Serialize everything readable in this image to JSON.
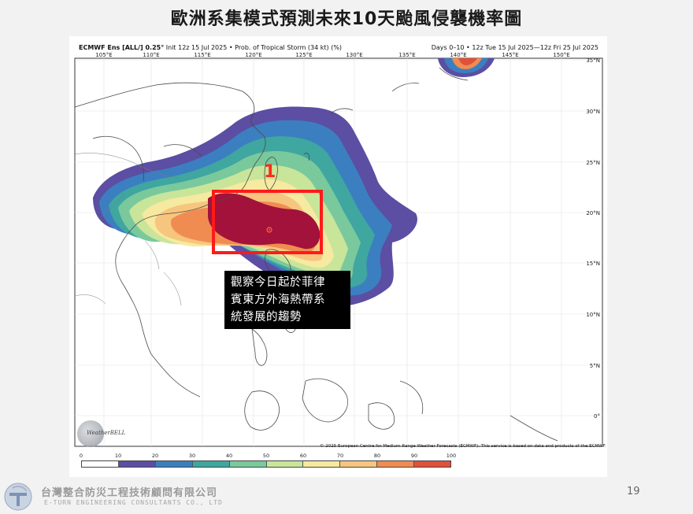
{
  "slide": {
    "title": "歐洲系集模式預測未來10天颱風侵襲機率圖",
    "page_number": "19"
  },
  "map": {
    "header_model": "ECMWF Ens [ALL/] 0.25°",
    "header_init": "Init 12z 15 Jul 2025",
    "header_product": "Prob. of Tropical Storm (34 kt) (%)",
    "header_valid": "Days 0–10 • 12z Tue 15 Jul 2025—12z Fri 25 Jul 2025",
    "lon_labels": [
      "105°E",
      "110°E",
      "115°E",
      "120°E",
      "125°E",
      "130°E",
      "135°E",
      "140°E",
      "145°E",
      "150°E"
    ],
    "lat_labels": [
      "35°N",
      "30°N",
      "25°N",
      "20°N",
      "15°N",
      "10°N",
      "5°N",
      "0°"
    ],
    "copyright": "© 2025 European Centre for Medium-Range Weather Forecasts (ECMWF). This service is based on data and products of the ECMWF.",
    "watermark": "WeatherBELL",
    "colorbar": {
      "ticks": [
        "0",
        "10",
        "20",
        "30",
        "40",
        "50",
        "60",
        "70",
        "80",
        "90",
        "100"
      ],
      "colors": [
        "#ffffff",
        "#5b4ea3",
        "#3b7fc0",
        "#3fa6a0",
        "#79c99d",
        "#c9e59a",
        "#f6e9a0",
        "#f7c67e",
        "#f08c52",
        "#e0513a",
        "#a3123a"
      ]
    }
  },
  "annotations": {
    "focus_number": "1",
    "callout_lines": [
      "觀察今日起於菲律",
      "賓東方外海熱帶系",
      "統發展的趨勢"
    ]
  },
  "footer": {
    "company_zh": "台灣整合防災工程技術顧問有限公司",
    "company_en": "E-TURN ENGINEERING CONSULTANTS CO., LTD"
  }
}
